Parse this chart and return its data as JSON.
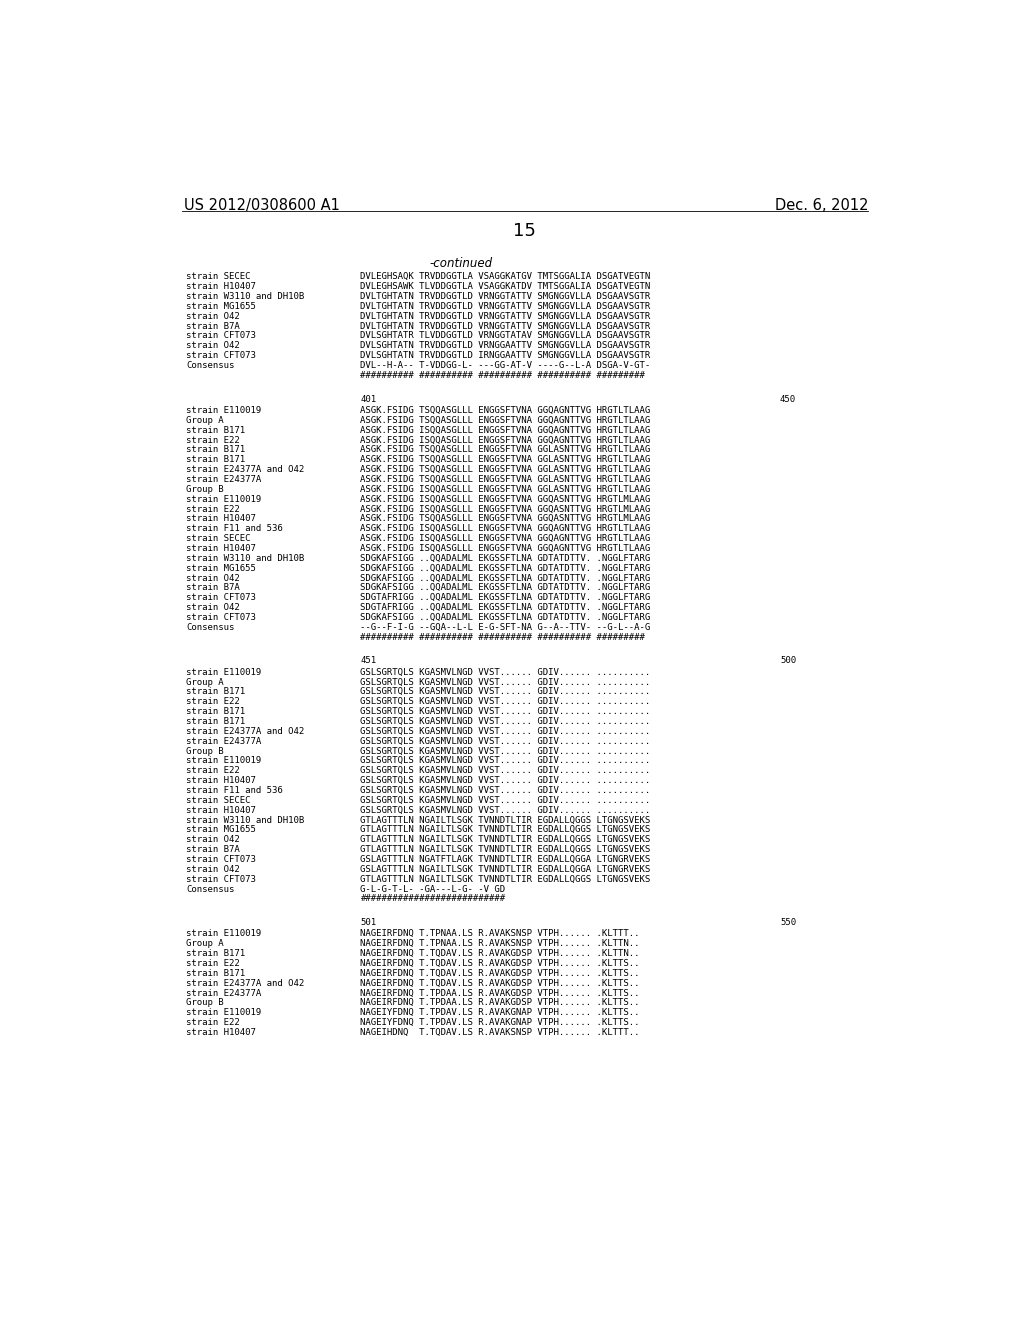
{
  "header_left": "US 2012/0308600 A1",
  "header_right": "Dec. 6, 2012",
  "page_number": "15",
  "background_color": "#ffffff",
  "text_color": "#000000",
  "continued_label": "-continued",
  "sections": [
    {
      "range_left": null,
      "range_right": null,
      "lines": [
        [
          "strain SECEC",
          "DVLEGHSAQK TRVDDGGTLA VSAGGKATGV TMTSGGALIA DSGATVEGTN"
        ],
        [
          "strain H10407",
          "DVLEGHSAWK TLVDDGGTLA VSAGGKATDV TMTSGGALIA DSGATVEGTN"
        ],
        [
          "strain W3110 and DH10B",
          "DVLTGHTATN TRVDDGGTLD VRNGGTATTV SMGNGGVLLA DSGAAVSGTR"
        ],
        [
          "strain MG1655",
          "DVLTGHTATN TRVDDGGTLD VRNGGTATTV SMGNGGVLLA DSGAAVSGTR"
        ],
        [
          "strain O42",
          "DVLTGHTATN TRVDDGGTLD VRNGGTATTV SMGNGGVLLA DSGAAVSGTR"
        ],
        [
          "strain B7A",
          "DVLTGHTATN TRVDDGGTLD VRNGGTATTV SMGNGGVLLA DSGAAVSGTR"
        ],
        [
          "strain CFT073",
          "DVLSGHTATR TLVDDGGTLD VRNGGTATAV SMGNGGVLLA DSGAAVSGTR"
        ],
        [
          "strain O42",
          "DVLSGHTATN TRVDDGGTLD VRNGGAATTV SMGNGGVLLA DSGAAVSGTR"
        ],
        [
          "strain CFT073",
          "DVLSGHTATN TRVDDGGTLD IRNGGAATTV SMGNGGVLLA DSGAAVSGTR"
        ],
        [
          "Consensus",
          "DVL--H-A-- T-VDDGG-L- ---GG-AT-V ----G--L-A DSGA-V-GT-"
        ],
        [
          "",
          "########## ########## ########## ########## #########"
        ]
      ]
    },
    {
      "range_left": "401",
      "range_right": "450",
      "lines": [
        [
          "strain E110019",
          "ASGK.FSIDG TSQQASGLLL ENGGSFTVNA GGQAGNTTVG HRGTLTLAAG"
        ],
        [
          "Group A",
          "ASGK.FSIDG TSQQASGLLL ENGGSFTVNA GGQAGNTTVG HRGTLTLAAG"
        ],
        [
          "strain B171",
          "ASGK.FSIDG ISQQASGLLL ENGGSFTVNA GGQAGNTTVG HRGTLTLAAG"
        ],
        [
          "strain E22",
          "ASGK.FSIDG ISQQASGLLL ENGGSFTVNA GGQAGNTTVG HRGTLTLAAG"
        ],
        [
          "strain B171",
          "ASGK.FSIDG TSQQASGLLL ENGGSFTVNA GGLASNTTVG HRGTLTLAAG"
        ],
        [
          "strain B171",
          "ASGK.FSIDG TSQQASGLLL ENGGSFTVNA GGLASNTTVG HRGTLTLAAG"
        ],
        [
          "strain E24377A and O42",
          "ASGK.FSIDG TSQQASGLLL ENGGSFTVNA GGLASNTTVG HRGTLTLAAG"
        ],
        [
          "strain E24377A",
          "ASGK.FSIDG TSQQASGLLL ENGGSFTVNA GGLASNTTVG HRGTLTLAAG"
        ],
        [
          "Group B",
          "ASGK.FSIDG ISQQASGLLL ENGGSFTVNA GGLASNTTVG HRGTLTLAAG"
        ],
        [
          "strain E110019",
          "ASGK.FSIDG ISQQASGLLL ENGGSFTVNA GGQASNTTVG HRGTLMLAAG"
        ],
        [
          "strain E22",
          "ASGK.FSIDG ISQQASGLLL ENGGSFTVNA GGQASNTTVG HRGTLMLAAG"
        ],
        [
          "strain H10407",
          "ASGK.FSIDG TSQQASGLLL ENGGSFTVNA GGQASNTTVG HRGTLMLAAG"
        ],
        [
          "strain F11 and 536",
          "ASGK.FSIDG ISQQASGLLL ENGGSFTVNA GGQAGNTTVG HRGTLTLAAG"
        ],
        [
          "strain SECEC",
          "ASGK.FSIDG ISQQASGLLL ENGGSFTVNA GGQAGNTTVG HRGTLTLAAG"
        ],
        [
          "strain H10407",
          "ASGK.FSIDG ISQQASGLLL ENGGSFTVNA GGQAGNTTVG HRGTLTLAAG"
        ],
        [
          "strain W3110 and DH10B",
          "SDGKAFSIGG ..QQADALML EKGSSFTLNA GDTATDTTV. .NGGLFTARG"
        ],
        [
          "strain MG1655",
          "SDGKAFSIGG ..QQADALML EKGSSFTLNA GDTATDTTV. .NGGLFTARG"
        ],
        [
          "strain O42",
          "SDGKAFSIGG ..QQADALML EKGSSFTLNA GDTATDTTV. .NGGLFTARG"
        ],
        [
          "strain B7A",
          "SDGKAFSIGG ..QQADALML EKGSSFTLNA GDTATDTTV. .NGGLFTARG"
        ],
        [
          "strain CFT073",
          "SDGTAFRIGG ..QQADALML EKGSSFTLNA GDTATDTTV. .NGGLFTARG"
        ],
        [
          "strain O42",
          "SDGTAFRIGG ..QQADALML EKGSSFTLNA GDTATDTTV. .NGGLFTARG"
        ],
        [
          "strain CFT073",
          "SDGKAFSIGG ..QQADALML EKGSSFTLNA GDTATDTTV. .NGGLFTARG"
        ],
        [
          "Consensus",
          "--G--F-I-G --GQA--L-L E-G-SFT-NA G--A--TTV- --G-L--A-G"
        ],
        [
          "",
          "########## ########## ########## ########## #########"
        ]
      ]
    },
    {
      "range_left": "451",
      "range_right": "500",
      "lines": [
        [
          "strain E110019",
          "GSLSGRTQLS KGASMVLNGD VVST...... GDIV...... .........."
        ],
        [
          "Group A",
          "GSLSGRTQLS KGASMVLNGD VVST...... GDIV...... .........."
        ],
        [
          "strain B171",
          "GSLSGRTQLS KGASMVLNGD VVST...... GDIV...... .........."
        ],
        [
          "strain E22",
          "GSLSGRTQLS KGASMVLNGD VVST...... GDIV...... .........."
        ],
        [
          "strain B171",
          "GSLSGRTQLS KGASMVLNGD VVST...... GDIV...... .........."
        ],
        [
          "strain B171",
          "GSLSGRTQLS KGASMVLNGD VVST...... GDIV...... .........."
        ],
        [
          "strain E24377A and O42",
          "GSLSGRTQLS KGASMVLNGD VVST...... GDIV...... .........."
        ],
        [
          "strain E24377A",
          "GSLSGRTQLS KGASMVLNGD VVST...... GDIV...... .........."
        ],
        [
          "Group B",
          "GSLSGRTQLS KGASMVLNGD VVST...... GDIV...... .........."
        ],
        [
          "strain E110019",
          "GSLSGRTQLS KGASMVLNGD VVST...... GDIV...... .........."
        ],
        [
          "strain E22",
          "GSLSGRTQLS KGASMVLNGD VVST...... GDIV...... .........."
        ],
        [
          "strain H10407",
          "GSLSGRTQLS KGASMVLNGD VVST...... GDIV...... .........."
        ],
        [
          "strain F11 and 536",
          "GSLSGRTQLS KGASMVLNGD VVST...... GDIV...... .........."
        ],
        [
          "strain SECEC",
          "GSLSGRTQLS KGASMVLNGD VVST...... GDIV...... .........."
        ],
        [
          "strain H10407",
          "GSLSGRTQLS KGASMVLNGD VVST...... GDIV...... .........."
        ],
        [
          "strain W3110 and DH10B",
          "GTLAGTTTLN NGAILTLSGK TVNNDTLTIR EGDALLQGGS LTGNGSVEKS"
        ],
        [
          "strain MG1655",
          "GTLAGTTTLN NGAILTLSGK TVNNDTLTIR EGDALLQGGS LTGNGSVEKS"
        ],
        [
          "strain O42",
          "GTLAGTTTLN NGAILTLSGK TVNNDTLTIR EGDALLQGGS LTGNGSVEKS"
        ],
        [
          "strain B7A",
          "GTLAGTTTLN NGAILTLSGK TVNNDTLTIR EGDALLQGGS LTGNGSVEKS"
        ],
        [
          "strain CFT073",
          "GSLAGTTTLN NGATFTLAGK TVNNDTLTIR EGDALLQGGA LTGNGRVEKS"
        ],
        [
          "strain O42",
          "GSLAGTTTLN NGAILTLSGK TVNNDTLTIR EGDALLQGGA LTGNGRVEKS"
        ],
        [
          "strain CFT073",
          "GTLAGTTTLN NGAILTLSGK TVNNDTLTIR EGDALLQGGS LTGNGSVEKS"
        ],
        [
          "Consensus",
          "G-L-G-T-L- -GA---L-G- -V GD"
        ],
        [
          "",
          "###########################"
        ]
      ]
    },
    {
      "range_left": "501",
      "range_right": "550",
      "lines": [
        [
          "strain E110019",
          "NAGEIRFDNQ T.TPNAA.LS R.AVAKSNSP VTPH...... .KLTTT.."
        ],
        [
          "Group A",
          "NAGEIRFDNQ T.TPNAA.LS R.AVAKSNSP VTPH...... .KLTTN.."
        ],
        [
          "strain B171",
          "NAGEIRFDNQ T.TQDAV.LS R.AVAKGDSP VTPH...... .KLTTN.."
        ],
        [
          "strain E22",
          "NAGEIRFDNQ T.TQDAV.LS R.AVAKGDSP VTPH...... .KLTTS.."
        ],
        [
          "strain B171",
          "NAGEIRFDNQ T.TQDAV.LS R.AVAKGDSP VTPH...... .KLTTS.."
        ],
        [
          "strain E24377A and O42",
          "NAGEIRFDNQ T.TQDAV.LS R.AVAKGDSP VTPH...... .KLTTS.."
        ],
        [
          "strain E24377A",
          "NAGEIRFDNQ T.TPDAA.LS R.AVAKGDSP VTPH...... .KLTTS.."
        ],
        [
          "Group B",
          "NAGEIRFDNQ T.TPDAA.LS R.AVAKGDSP VTPH...... .KLTTS.."
        ],
        [
          "strain E110019",
          "NAGEIYFDNQ T.TPDAV.LS R.AVAKGNAP VTPH...... .KLTTS.."
        ],
        [
          "strain E22",
          "NAGEIYFDNQ T.TPDAV.LS R.AVAKGNAP VTPH...... .KLTTS.."
        ],
        [
          "strain H10407",
          "NAGEIHDNQ  T.TQDAV.LS R.AVAKSNSP VTPH...... .KLTTT.."
        ]
      ]
    }
  ]
}
